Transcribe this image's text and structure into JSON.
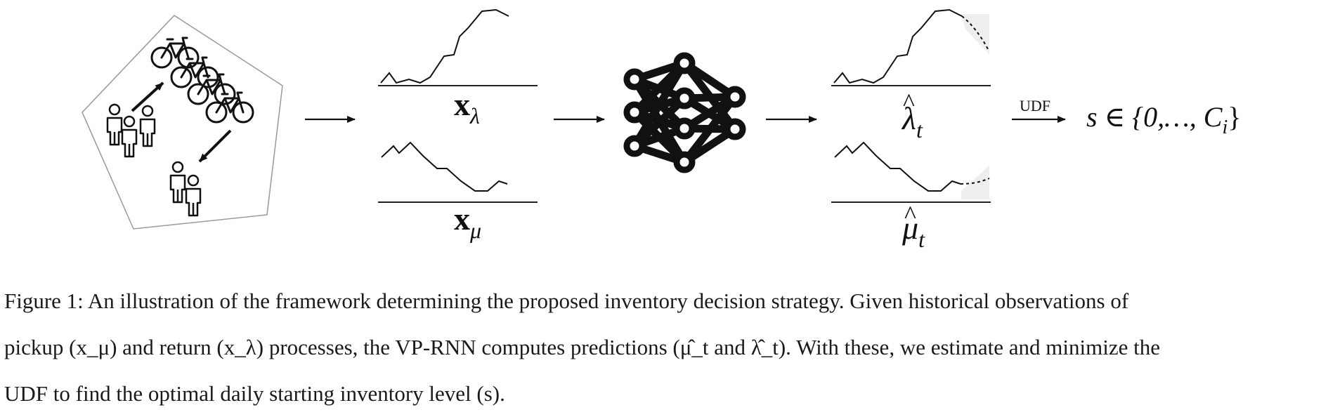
{
  "figure": {
    "features": {
      "lambda_base": "x",
      "lambda_sub": "λ",
      "mu_base": "x",
      "mu_sub": "μ"
    },
    "predictions": {
      "lambda_base": "λ",
      "lambda_hat": "^",
      "lambda_sub": "t",
      "mu_base": "μ",
      "mu_hat": "^",
      "mu_sub": "t"
    },
    "udf_label": "UDF",
    "result": {
      "prefix": "s ∈ {0,…, ",
      "c_base": "C",
      "c_sub": "i",
      "suffix": "}"
    }
  },
  "caption": {
    "line1": "Figure 1: An illustration of the framework determining the proposed inventory decision strategy. Given historical observations of",
    "line2": "pickup (x_μ) and return (x_λ) processes, the VP-RNN computes predictions (μ̂_t and λ̂_t). With these, we estimate and minimize the",
    "line3": "UDF to find the optimal daily starting inventory level (s)."
  }
}
